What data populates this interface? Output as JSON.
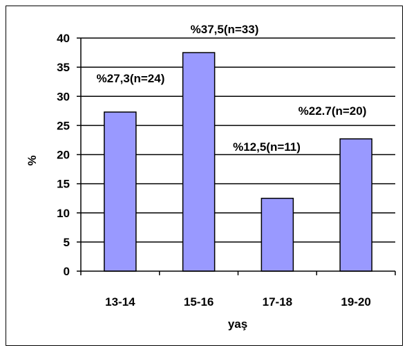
{
  "chart_data": {
    "type": "bar",
    "categories": [
      "13-14",
      "15-16",
      "17-18",
      "19-20"
    ],
    "values": [
      27.3,
      37.5,
      12.5,
      22.7
    ],
    "title": "",
    "xlabel": "yaş",
    "ylabel": "%",
    "ylim": [
      0,
      40
    ],
    "yticks": [
      0,
      5,
      10,
      15,
      20,
      25,
      30,
      35,
      40
    ],
    "grid": true,
    "annotations": [
      "%27,3(n=24)",
      "%37,5(n=33)",
      "%12,5(n=11)",
      "%22.7(n=20)"
    ],
    "colors": {
      "bar": "#9999ff",
      "bar_stroke": "#000000",
      "grid": "#000000"
    }
  }
}
